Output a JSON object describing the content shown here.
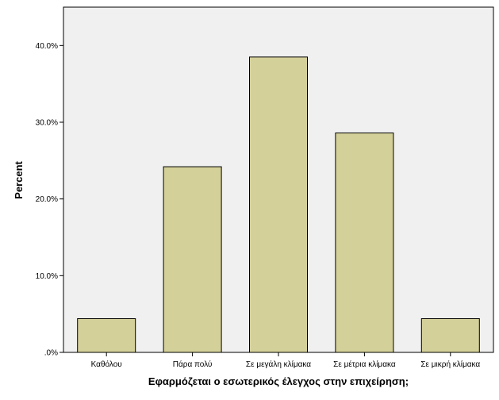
{
  "chart_data": {
    "type": "bar",
    "categories": [
      "Καθόλου",
      "Πάρα πολύ",
      "Σε μεγάλη κλίμακα",
      "Σε μέτρια κλίμακα",
      "Σε μικρή κλίμακα"
    ],
    "values": [
      4.4,
      24.2,
      38.5,
      28.6,
      4.4
    ],
    "xlabel": "Εφαρμόζεται ο εσωτερικός έλεγχος στην επιχείρηση;",
    "ylabel": "Percent",
    "ylim": [
      0,
      45
    ],
    "yticks": [
      0,
      10,
      20,
      30,
      40
    ],
    "ytick_labels": [
      ".0%",
      "10.0%",
      "20.0%",
      "30.0%",
      "40.0%"
    ],
    "grid": false,
    "colors": {
      "plot_background": "#f0f0f0",
      "bar_fill": "#d4d099",
      "bar_stroke": "#000000"
    }
  }
}
